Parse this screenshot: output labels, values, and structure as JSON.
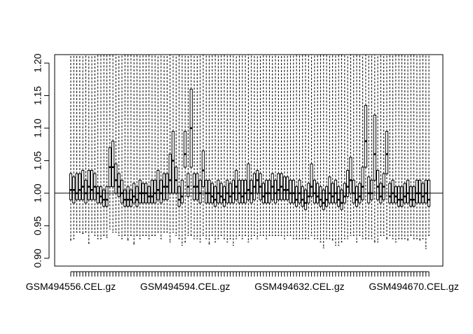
{
  "chart_data": {
    "type": "boxplot",
    "categories": [
      "GSM494556.CEL.gz",
      null,
      null,
      null,
      null,
      null,
      null,
      null,
      null,
      null,
      null,
      null,
      null,
      null,
      null,
      null,
      null,
      null,
      null,
      null,
      null,
      null,
      null,
      null,
      null,
      null,
      null,
      null,
      null,
      null,
      null,
      null,
      null,
      null,
      null,
      null,
      null,
      null,
      "GSM494594.CEL.gz",
      null,
      null,
      null,
      null,
      null,
      null,
      null,
      null,
      null,
      null,
      null,
      null,
      null,
      null,
      null,
      null,
      null,
      null,
      null,
      null,
      null,
      null,
      null,
      null,
      null,
      null,
      null,
      null,
      null,
      null,
      null,
      null,
      null,
      null,
      null,
      null,
      null,
      "GSM494632.CEL.gz",
      null,
      null,
      null,
      null,
      null,
      null,
      null,
      null,
      null,
      null,
      null,
      null,
      null,
      null,
      null,
      null,
      null,
      null,
      null,
      null,
      null,
      null,
      null,
      null,
      null,
      null,
      null,
      null,
      null,
      null,
      null,
      null,
      null,
      null,
      null,
      null,
      null,
      "GSM494670.CEL.gz",
      null,
      null,
      null,
      null,
      null
    ],
    "series": [
      {
        "color": "#000000",
        "lower": [
          0.928,
          0.93,
          0.94,
          0.94,
          0.938,
          0.94,
          0.923,
          0.94,
          0.935,
          0.93,
          0.93,
          0.935,
          0.932,
          0.945,
          0.94,
          0.94,
          0.935,
          0.93,
          0.935,
          0.928,
          0.935,
          0.922,
          0.935,
          0.93,
          0.935,
          0.935,
          0.93,
          0.935,
          0.935,
          0.94,
          0.93,
          0.94,
          0.94,
          0.925,
          0.94,
          0.935,
          0.93,
          0.92,
          0.925,
          0.935,
          0.935,
          0.93,
          0.93,
          0.925,
          0.935,
          0.93,
          0.922,
          0.935,
          0.925,
          0.93,
          0.935,
          0.93,
          0.925,
          0.93,
          0.92,
          0.93,
          0.935,
          0.93,
          0.935,
          0.925,
          0.93,
          0.935,
          0.93,
          0.935,
          0.935,
          0.93,
          0.935,
          0.935,
          0.935,
          0.935,
          0.935,
          0.93,
          0.935,
          0.935,
          0.93,
          0.93,
          0.93,
          0.93,
          0.93,
          0.93,
          0.935,
          0.93,
          0.93,
          0.925,
          0.916,
          0.93,
          0.93,
          0.928,
          0.92,
          0.92,
          0.925,
          0.93,
          0.93,
          0.935,
          0.935,
          0.925,
          0.935,
          0.93,
          0.93,
          0.93,
          0.93,
          0.925,
          0.925,
          0.935,
          0.935,
          0.93,
          0.935,
          0.93,
          0.925,
          0.93,
          0.93,
          0.93,
          0.928,
          0.935,
          0.93,
          0.93,
          0.928,
          0.93,
          0.915,
          0.935
        ],
        "q1": [
          0.99,
          0.985,
          0.99,
          0.99,
          0.99,
          0.985,
          0.99,
          0.99,
          0.99,
          0.985,
          0.985,
          0.98,
          0.98,
          1.01,
          1.01,
          1.0,
          0.995,
          0.985,
          0.98,
          0.98,
          0.98,
          0.985,
          0.98,
          0.985,
          0.985,
          0.985,
          0.985,
          0.985,
          0.985,
          0.99,
          0.985,
          0.99,
          0.99,
          1.0,
          1.0,
          1.0,
          0.98,
          0.985,
          1.04,
          0.995,
          1.04,
          0.99,
          0.99,
          0.985,
          1.01,
          0.985,
          0.985,
          0.985,
          0.98,
          0.985,
          0.985,
          0.98,
          0.985,
          0.985,
          0.985,
          0.99,
          0.985,
          0.985,
          0.985,
          0.99,
          0.985,
          0.99,
          1.0,
          0.99,
          0.985,
          0.985,
          0.985,
          0.99,
          0.985,
          0.99,
          0.99,
          0.99,
          0.99,
          0.985,
          0.985,
          0.98,
          0.985,
          0.98,
          0.975,
          0.985,
          0.995,
          0.985,
          0.985,
          0.98,
          0.975,
          0.98,
          0.985,
          0.985,
          0.985,
          0.98,
          0.975,
          0.985,
          0.995,
          1.0,
          0.985,
          0.98,
          0.985,
          0.99,
          1.04,
          0.985,
          0.99,
          1.02,
          0.99,
          0.985,
          0.99,
          1.03,
          0.985,
          0.985,
          0.985,
          0.98,
          0.98,
          0.985,
          0.985,
          0.98,
          0.98,
          0.985,
          0.985,
          0.985,
          0.985,
          0.98
        ],
        "median": [
          1.005,
          1.005,
          1.0,
          1.005,
          1.01,
          1.0,
          1.01,
          1.005,
          1.01,
          1.0,
          0.995,
          0.99,
          0.99,
          1.04,
          1.04,
          1.02,
          1.01,
          1.0,
          0.99,
          0.99,
          0.99,
          0.995,
          0.99,
          1.0,
          1.0,
          1.0,
          0.995,
          0.995,
          1.0,
          1.005,
          1.0,
          1.01,
          1.01,
          1.02,
          1.05,
          1.02,
          0.99,
          0.995,
          1.06,
          1.01,
          1.1,
          1.01,
          1.01,
          1.0,
          1.035,
          1.0,
          1.0,
          0.995,
          0.99,
          1.0,
          0.995,
          0.99,
          1.0,
          0.995,
          1.0,
          1.01,
          1.0,
          0.995,
          1.0,
          1.005,
          1.0,
          1.01,
          1.02,
          1.01,
          0.995,
          1.0,
          1.0,
          1.01,
          1.0,
          1.005,
          1.01,
          1.005,
          1.005,
          1.0,
          1.0,
          0.99,
          1.0,
          0.99,
          0.985,
          0.995,
          1.01,
          1.0,
          0.995,
          0.99,
          0.985,
          0.99,
          1.0,
          0.995,
          1.0,
          0.99,
          0.985,
          0.995,
          1.01,
          1.02,
          1.0,
          0.99,
          0.995,
          1.01,
          1.08,
          1.0,
          1.0,
          1.06,
          1.01,
          0.995,
          1.01,
          1.06,
          0.995,
          1.0,
          0.995,
          0.99,
          0.99,
          0.995,
          1.0,
          0.99,
          0.99,
          1.0,
          1.0,
          0.995,
          1.0,
          0.99
        ],
        "q3": [
          1.03,
          1.025,
          1.03,
          1.03,
          1.035,
          1.02,
          1.035,
          1.035,
          1.03,
          1.01,
          1.01,
          1.005,
          1.01,
          1.07,
          1.08,
          1.045,
          1.03,
          1.02,
          1.005,
          1.01,
          1.005,
          1.015,
          1.01,
          1.02,
          1.015,
          1.015,
          1.01,
          1.02,
          1.02,
          1.035,
          1.02,
          1.03,
          1.03,
          1.06,
          1.095,
          1.04,
          1.01,
          1.02,
          1.095,
          1.03,
          1.16,
          1.03,
          1.03,
          1.02,
          1.065,
          1.02,
          1.02,
          1.015,
          1.01,
          1.02,
          1.015,
          1.01,
          1.02,
          1.015,
          1.02,
          1.035,
          1.02,
          1.02,
          1.02,
          1.045,
          1.02,
          1.03,
          1.035,
          1.03,
          1.015,
          1.02,
          1.02,
          1.03,
          1.02,
          1.03,
          1.03,
          1.025,
          1.025,
          1.02,
          1.02,
          1.01,
          1.02,
          1.01,
          1.005,
          1.015,
          1.045,
          1.02,
          1.015,
          1.01,
          1.005,
          1.01,
          1.025,
          1.015,
          1.02,
          1.01,
          1.005,
          1.015,
          1.035,
          1.055,
          1.02,
          1.01,
          1.015,
          1.04,
          1.135,
          1.025,
          1.02,
          1.12,
          1.035,
          1.015,
          1.03,
          1.095,
          1.015,
          1.02,
          1.01,
          1.01,
          1.01,
          1.015,
          1.02,
          1.01,
          1.01,
          1.02,
          1.02,
          1.015,
          1.02,
          1.02
        ],
        "upper": [
          1.25,
          1.25,
          1.25,
          1.25,
          1.25,
          1.25,
          1.25,
          1.25,
          1.25,
          1.25,
          1.25,
          1.25,
          1.25,
          1.25,
          1.25,
          1.25,
          1.25,
          1.25,
          1.25,
          1.25,
          1.25,
          1.25,
          1.25,
          1.25,
          1.25,
          1.25,
          1.25,
          1.25,
          1.25,
          1.25,
          1.25,
          1.25,
          1.25,
          1.25,
          1.25,
          1.25,
          1.25,
          1.25,
          1.25,
          1.25,
          1.25,
          1.25,
          1.25,
          1.25,
          1.25,
          1.25,
          1.25,
          1.25,
          1.25,
          1.25,
          1.25,
          1.25,
          1.25,
          1.25,
          1.25,
          1.25,
          1.25,
          1.25,
          1.25,
          1.25,
          1.25,
          1.25,
          1.25,
          1.25,
          1.25,
          1.25,
          1.25,
          1.25,
          1.25,
          1.25,
          1.25,
          1.25,
          1.25,
          1.25,
          1.25,
          1.25,
          1.25,
          1.25,
          1.25,
          1.25,
          1.25,
          1.25,
          1.25,
          1.25,
          1.25,
          1.25,
          1.25,
          1.25,
          1.25,
          1.25,
          1.25,
          1.25,
          1.25,
          1.25,
          1.25,
          1.25,
          1.25,
          1.25,
          1.25,
          1.25,
          1.25,
          1.25,
          1.25,
          1.25,
          1.25,
          1.25,
          1.25,
          1.25,
          1.25,
          1.25,
          1.25,
          1.25,
          1.25,
          1.25,
          1.25,
          1.25,
          1.25,
          1.25,
          1.25,
          1.25
        ]
      }
    ],
    "hline": 1,
    "ylim": [
      0.888,
      1.213
    ],
    "yticks": [
      {
        "value": 0.9,
        "label": "0.90"
      },
      {
        "value": 0.95,
        "label": "0.95"
      },
      {
        "value": 1.0,
        "label": "1.00"
      },
      {
        "value": 1.05,
        "label": "1.05"
      },
      {
        "value": 1.1,
        "label": "1.10"
      },
      {
        "value": 1.15,
        "label": "1.15"
      },
      {
        "value": 1.2,
        "label": "1.20"
      }
    ]
  }
}
